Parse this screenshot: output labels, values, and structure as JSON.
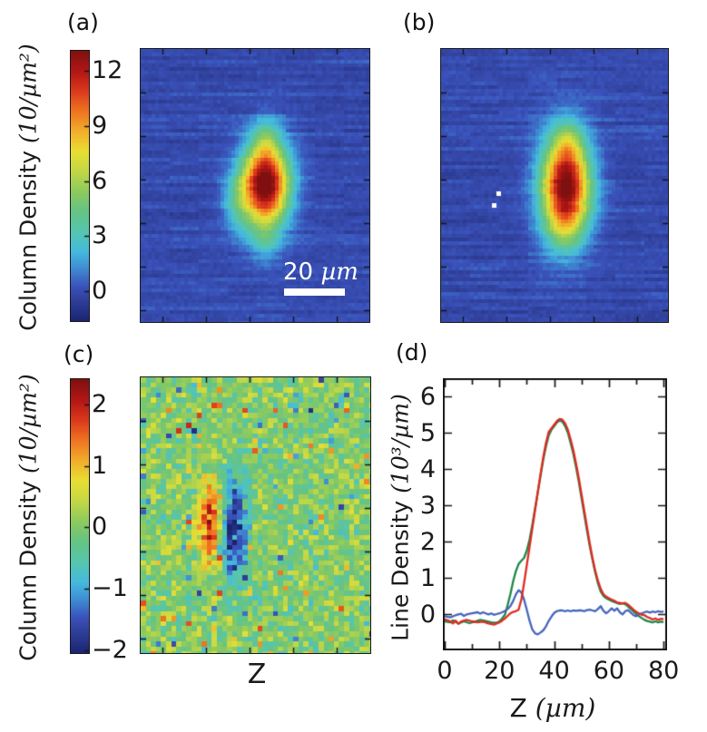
{
  "colormap": [
    [
      0.0,
      "#1a2470"
    ],
    [
      0.09,
      "#32439f"
    ],
    [
      0.13,
      "#3a52bb"
    ],
    [
      0.2,
      "#3f8fd4"
    ],
    [
      0.26,
      "#45bade"
    ],
    [
      0.33,
      "#55c6b0"
    ],
    [
      0.41,
      "#66c383"
    ],
    [
      0.48,
      "#8cca5f"
    ],
    [
      0.56,
      "#c6d844"
    ],
    [
      0.63,
      "#e8de33"
    ],
    [
      0.7,
      "#f2b02b"
    ],
    [
      0.78,
      "#ee7220"
    ],
    [
      0.85,
      "#dc3b1c"
    ],
    [
      0.92,
      "#b51815"
    ],
    [
      1.0,
      "#801010"
    ]
  ],
  "chart_data": [
    {
      "id": "a",
      "type": "heatmap",
      "panel_label": "(a)",
      "colorbar": {
        "label_main": "Column Density ",
        "label_unit": "(10/µm²)",
        "tick_values": [
          12,
          9,
          6,
          3,
          0
        ],
        "vmin": -1.63,
        "vmax": 13.1
      },
      "seed": 11,
      "cell": 4,
      "noise": {
        "row": 0.55,
        "seg": 0.55,
        "cellamp": 0.45
      },
      "blobs": [
        {
          "fx": 0.545,
          "fy": 0.495,
          "sx": 0.072,
          "sy": 0.105,
          "a": 14.2
        },
        {
          "fx": 0.55,
          "fy": 0.33,
          "sx": 0.04,
          "sy": 0.05,
          "a": 2.2
        },
        {
          "fx": 0.545,
          "fy": 0.7,
          "sx": 0.045,
          "sy": 0.055,
          "a": 2.0
        },
        {
          "fx": 0.425,
          "fy": 0.56,
          "sx": 0.045,
          "sy": 0.07,
          "a": 2.6
        }
      ],
      "scalebar": {
        "value": "20",
        "unit": "µm",
        "length_um": 20
      }
    },
    {
      "id": "b",
      "type": "heatmap",
      "panel_label": "(b)",
      "seed": 22,
      "cell": 4,
      "noise": {
        "row": 0.55,
        "seg": 0.55,
        "cellamp": 0.45
      },
      "vmin": -1.63,
      "vmax": 13.1,
      "blobs": [
        {
          "fx": 0.55,
          "fy": 0.5,
          "sx": 0.075,
          "sy": 0.125,
          "a": 13.8
        },
        {
          "fx": 0.56,
          "fy": 0.335,
          "sx": 0.04,
          "sy": 0.05,
          "a": 1.8
        },
        {
          "fx": 0.54,
          "fy": 0.66,
          "sx": 0.06,
          "sy": 0.06,
          "a": 2.0
        }
      ],
      "dots": [
        {
          "fx": 0.245,
          "fy": 0.52
        },
        {
          "fx": 0.225,
          "fy": 0.565
        }
      ]
    },
    {
      "id": "c",
      "type": "heatmap",
      "panel_label": "(c)",
      "xlabel": "Z",
      "colorbar": {
        "label_main": "Column Density ",
        "label_unit": "(10/µm²)",
        "tick_values": [
          2,
          1,
          0,
          -1,
          -2
        ],
        "vmin": -2.05,
        "vmax": 2.42
      },
      "seed": 33,
      "cell": 5.6,
      "noise_cell": 0.8,
      "outlier_p": 0.05,
      "blobs": [
        {
          "fx": 0.305,
          "fy": 0.53,
          "sx": 0.035,
          "sy": 0.1,
          "a": 2.0
        },
        {
          "fx": 0.405,
          "fy": 0.555,
          "sx": 0.04,
          "sy": 0.125,
          "a": -2.1
        }
      ]
    },
    {
      "id": "d",
      "type": "line",
      "panel_label": "(d)",
      "xlabel_main": "Z ",
      "xlabel_unit": "(µm)",
      "ylabel_main": "Line Density ",
      "ylabel_unit": "(10³/µm)",
      "xlim": [
        0,
        80.6
      ],
      "ylim": [
        -1.0,
        6.5
      ],
      "xticks": [
        0,
        20,
        40,
        60,
        80
      ],
      "xminor": [
        10,
        30,
        50,
        70
      ],
      "yticks": [
        0,
        1,
        2,
        3,
        4,
        5,
        6
      ],
      "series": [
        {
          "name": "green",
          "color": "#1c8747",
          "points": [
            [
              0,
              -0.2
            ],
            [
              2,
              -0.23
            ],
            [
              3,
              -0.17
            ],
            [
              5,
              -0.26
            ],
            [
              7,
              -0.2
            ],
            [
              9,
              -0.25
            ],
            [
              11,
              -0.21
            ],
            [
              13,
              -0.16
            ],
            [
              15,
              -0.19
            ],
            [
              17,
              -0.23
            ],
            [
              19,
              -0.24
            ],
            [
              20,
              -0.2
            ],
            [
              21,
              -0.12
            ],
            [
              22,
              -0.02
            ],
            [
              23,
              0.25
            ],
            [
              24,
              0.55
            ],
            [
              25,
              0.9
            ],
            [
              26,
              1.18
            ],
            [
              27,
              1.38
            ],
            [
              28,
              1.47
            ],
            [
              29,
              1.55
            ],
            [
              30,
              1.75
            ],
            [
              31,
              2.05
            ],
            [
              32,
              2.45
            ],
            [
              33,
              2.9
            ],
            [
              34,
              3.35
            ],
            [
              35,
              3.8
            ],
            [
              36,
              4.25
            ],
            [
              37,
              4.62
            ],
            [
              38,
              4.92
            ],
            [
              39,
              5.08
            ],
            [
              40,
              5.18
            ],
            [
              41,
              5.28
            ],
            [
              42,
              5.34
            ],
            [
              43,
              5.3
            ],
            [
              44,
              5.18
            ],
            [
              45,
              5.0
            ],
            [
              46,
              4.72
            ],
            [
              47,
              4.42
            ],
            [
              48,
              4.05
            ],
            [
              49,
              3.65
            ],
            [
              50,
              3.2
            ],
            [
              51,
              2.75
            ],
            [
              52,
              2.3
            ],
            [
              53,
              1.88
            ],
            [
              54,
              1.5
            ],
            [
              55,
              1.15
            ],
            [
              56,
              0.85
            ],
            [
              57,
              0.62
            ],
            [
              58,
              0.5
            ],
            [
              59,
              0.44
            ],
            [
              60,
              0.4
            ],
            [
              61,
              0.36
            ],
            [
              62,
              0.33
            ],
            [
              63,
              0.3
            ],
            [
              64,
              0.28
            ],
            [
              65,
              0.3
            ],
            [
              66,
              0.27
            ],
            [
              67,
              0.21
            ],
            [
              68,
              0.14
            ],
            [
              69,
              0.07
            ],
            [
              70,
              0.0
            ],
            [
              71,
              -0.06
            ],
            [
              72,
              -0.11
            ],
            [
              73,
              -0.16
            ],
            [
              74,
              -0.19
            ],
            [
              75,
              -0.21
            ],
            [
              76,
              -0.23
            ],
            [
              77,
              -0.2
            ],
            [
              78,
              -0.23
            ],
            [
              79,
              -0.21
            ],
            [
              80,
              -0.22
            ]
          ]
        },
        {
          "name": "blue",
          "color": "#4565bd",
          "points": [
            [
              0,
              -0.06
            ],
            [
              2,
              -0.09
            ],
            [
              4,
              -0.03
            ],
            [
              6,
              0.01
            ],
            [
              7,
              -0.05
            ],
            [
              8,
              -0.01
            ],
            [
              10,
              0.02
            ],
            [
              12,
              0.05
            ],
            [
              13,
              0.01
            ],
            [
              14,
              0.05
            ],
            [
              15,
              0.02
            ],
            [
              16,
              -0.01
            ],
            [
              17,
              0.02
            ],
            [
              18,
              -0.02
            ],
            [
              19,
              0.0
            ],
            [
              20,
              0.02
            ],
            [
              21,
              0.05
            ],
            [
              22,
              0.09
            ],
            [
              23,
              0.14
            ],
            [
              24,
              0.22
            ],
            [
              25,
              0.36
            ],
            [
              26,
              0.54
            ],
            [
              27,
              0.66
            ],
            [
              28,
              0.6
            ],
            [
              29,
              0.4
            ],
            [
              30,
              0.12
            ],
            [
              31,
              -0.18
            ],
            [
              32,
              -0.42
            ],
            [
              33,
              -0.53
            ],
            [
              34,
              -0.56
            ],
            [
              35,
              -0.51
            ],
            [
              36,
              -0.45
            ],
            [
              37,
              -0.34
            ],
            [
              38,
              -0.19
            ],
            [
              39,
              -0.07
            ],
            [
              40,
              0.03
            ],
            [
              41,
              0.08
            ],
            [
              42,
              0.1
            ],
            [
              43,
              0.1
            ],
            [
              44,
              0.08
            ],
            [
              45,
              0.1
            ],
            [
              46,
              0.08
            ],
            [
              47,
              0.1
            ],
            [
              48,
              0.09
            ],
            [
              49,
              0.1
            ],
            [
              50,
              0.1
            ],
            [
              51,
              0.08
            ],
            [
              52,
              0.11
            ],
            [
              53,
              0.12
            ],
            [
              54,
              0.1
            ],
            [
              55,
              0.08
            ],
            [
              56,
              0.14
            ],
            [
              57,
              0.22
            ],
            [
              58,
              0.09
            ],
            [
              59,
              0.02
            ],
            [
              60,
              0.08
            ],
            [
              61,
              0.16
            ],
            [
              62,
              0.09
            ],
            [
              63,
              0.16
            ],
            [
              64,
              0.05
            ],
            [
              65,
              -0.01
            ],
            [
              66,
              0.08
            ],
            [
              67,
              0.11
            ],
            [
              68,
              0.04
            ],
            [
              69,
              -0.03
            ],
            [
              70,
              -0.06
            ],
            [
              71,
              -0.01
            ],
            [
              72,
              0.02
            ],
            [
              73,
              0.05
            ],
            [
              74,
              0.07
            ],
            [
              75,
              0.04
            ],
            [
              76,
              0.07
            ],
            [
              77,
              0.05
            ],
            [
              78,
              0.08
            ],
            [
              79,
              0.06
            ],
            [
              80,
              0.07
            ]
          ]
        },
        {
          "name": "red",
          "color": "#e02b22",
          "points": [
            [
              0,
              -0.14
            ],
            [
              2,
              -0.2
            ],
            [
              3,
              -0.26
            ],
            [
              4,
              -0.18
            ],
            [
              5,
              -0.27
            ],
            [
              6,
              -0.2
            ],
            [
              8,
              -0.16
            ],
            [
              10,
              -0.2
            ],
            [
              12,
              -0.23
            ],
            [
              14,
              -0.21
            ],
            [
              16,
              -0.26
            ],
            [
              18,
              -0.29
            ],
            [
              19,
              -0.26
            ],
            [
              20,
              -0.23
            ],
            [
              21,
              -0.18
            ],
            [
              22,
              -0.12
            ],
            [
              23,
              -0.05
            ],
            [
              24,
              0.02
            ],
            [
              25,
              0.06
            ],
            [
              26,
              0.08
            ],
            [
              27,
              0.12
            ],
            [
              28,
              0.4
            ],
            [
              29,
              0.85
            ],
            [
              30,
              1.35
            ],
            [
              31,
              1.85
            ],
            [
              32,
              2.35
            ],
            [
              33,
              2.85
            ],
            [
              34,
              3.35
            ],
            [
              35,
              3.85
            ],
            [
              36,
              4.32
            ],
            [
              37,
              4.72
            ],
            [
              38,
              5.02
            ],
            [
              39,
              5.12
            ],
            [
              40,
              5.22
            ],
            [
              41,
              5.32
            ],
            [
              42,
              5.38
            ],
            [
              43,
              5.36
            ],
            [
              44,
              5.26
            ],
            [
              45,
              5.08
            ],
            [
              46,
              4.82
            ],
            [
              47,
              4.52
            ],
            [
              48,
              4.15
            ],
            [
              49,
              3.75
            ],
            [
              50,
              3.3
            ],
            [
              51,
              2.85
            ],
            [
              52,
              2.4
            ],
            [
              53,
              1.95
            ],
            [
              54,
              1.55
            ],
            [
              55,
              1.2
            ],
            [
              56,
              0.92
            ],
            [
              57,
              0.7
            ],
            [
              58,
              0.55
            ],
            [
              59,
              0.48
            ],
            [
              60,
              0.44
            ],
            [
              61,
              0.4
            ],
            [
              62,
              0.37
            ],
            [
              63,
              0.32
            ],
            [
              64,
              0.31
            ],
            [
              65,
              0.29
            ],
            [
              66,
              0.31
            ],
            [
              67,
              0.26
            ],
            [
              68,
              0.19
            ],
            [
              69,
              0.12
            ],
            [
              70,
              0.06
            ],
            [
              71,
              0.02
            ],
            [
              72,
              -0.02
            ],
            [
              73,
              -0.03
            ],
            [
              74,
              -0.08
            ],
            [
              75,
              -0.11
            ],
            [
              76,
              -0.15
            ],
            [
              77,
              -0.12
            ],
            [
              78,
              -0.16
            ],
            [
              79,
              -0.13
            ],
            [
              80,
              -0.14
            ]
          ]
        }
      ]
    }
  ]
}
